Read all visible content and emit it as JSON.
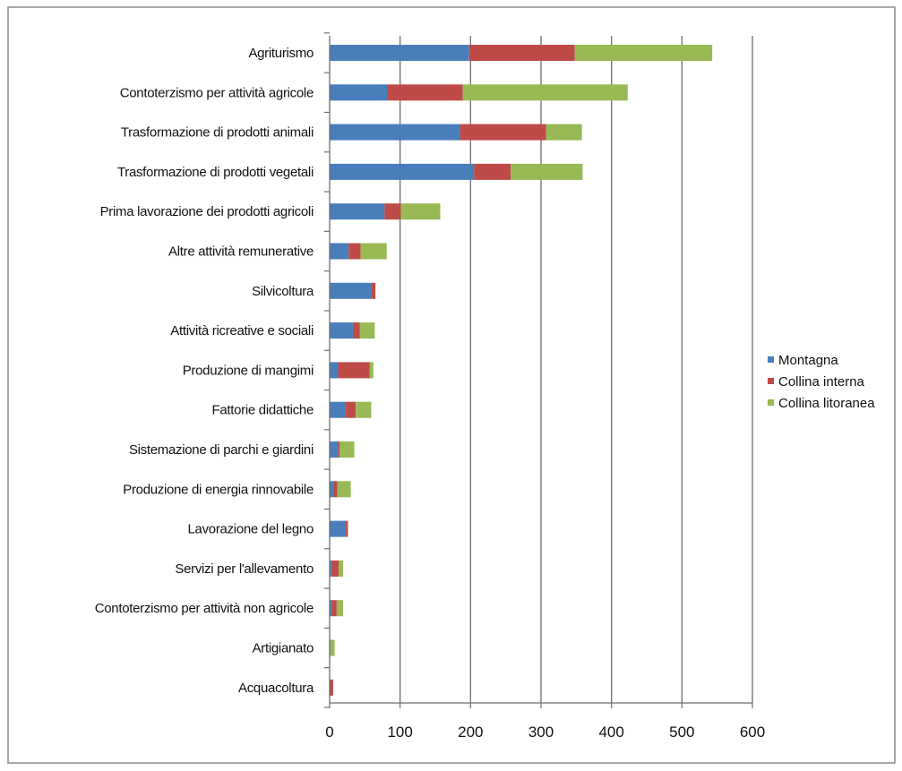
{
  "chart_data": {
    "type": "bar",
    "orientation": "horizontal",
    "stacked": true,
    "categories": [
      "Agriturismo",
      "Contoterzismo per attività agricole",
      "Trasformazione di prodotti animali",
      "Trasformazione di prodotti vegetali",
      "Prima lavorazione dei prodotti agricoli",
      "Altre attività remunerative",
      "Silvicoltura",
      "Attività ricreative e sociali",
      "Produzione di mangimi",
      "Fattorie didattiche",
      "Sistemazione di parchi e giardini",
      "Produzione di energia rinnovabile",
      "Lavorazione del legno",
      "Servizi per l'allevamento",
      "Contoterzismo per attività non agricole",
      "Artigianato",
      "Acquacoltura"
    ],
    "series": [
      {
        "name": "Montagna",
        "color": "#4a7ebb",
        "values": [
          198,
          82,
          185,
          205,
          78,
          27,
          59,
          33,
          12,
          23,
          12,
          5,
          23,
          3,
          3,
          0,
          0
        ]
      },
      {
        "name": "Collina interna",
        "color": "#be4b48",
        "values": [
          150,
          107,
          122,
          52,
          23,
          17,
          6,
          10,
          45,
          14,
          2,
          6,
          3,
          10,
          7,
          1,
          5
        ]
      },
      {
        "name": "Collina litoranea",
        "color": "#98b954",
        "values": [
          195,
          234,
          51,
          102,
          56,
          37,
          0,
          21,
          5,
          22,
          21,
          19,
          0,
          6,
          9,
          6,
          0
        ]
      }
    ],
    "xlim": [
      0,
      600
    ],
    "xticks": [
      0,
      100,
      200,
      300,
      400,
      500,
      600
    ],
    "grid": "vertical",
    "legend_position": "right",
    "title": "",
    "xlabel": "",
    "ylabel": ""
  }
}
